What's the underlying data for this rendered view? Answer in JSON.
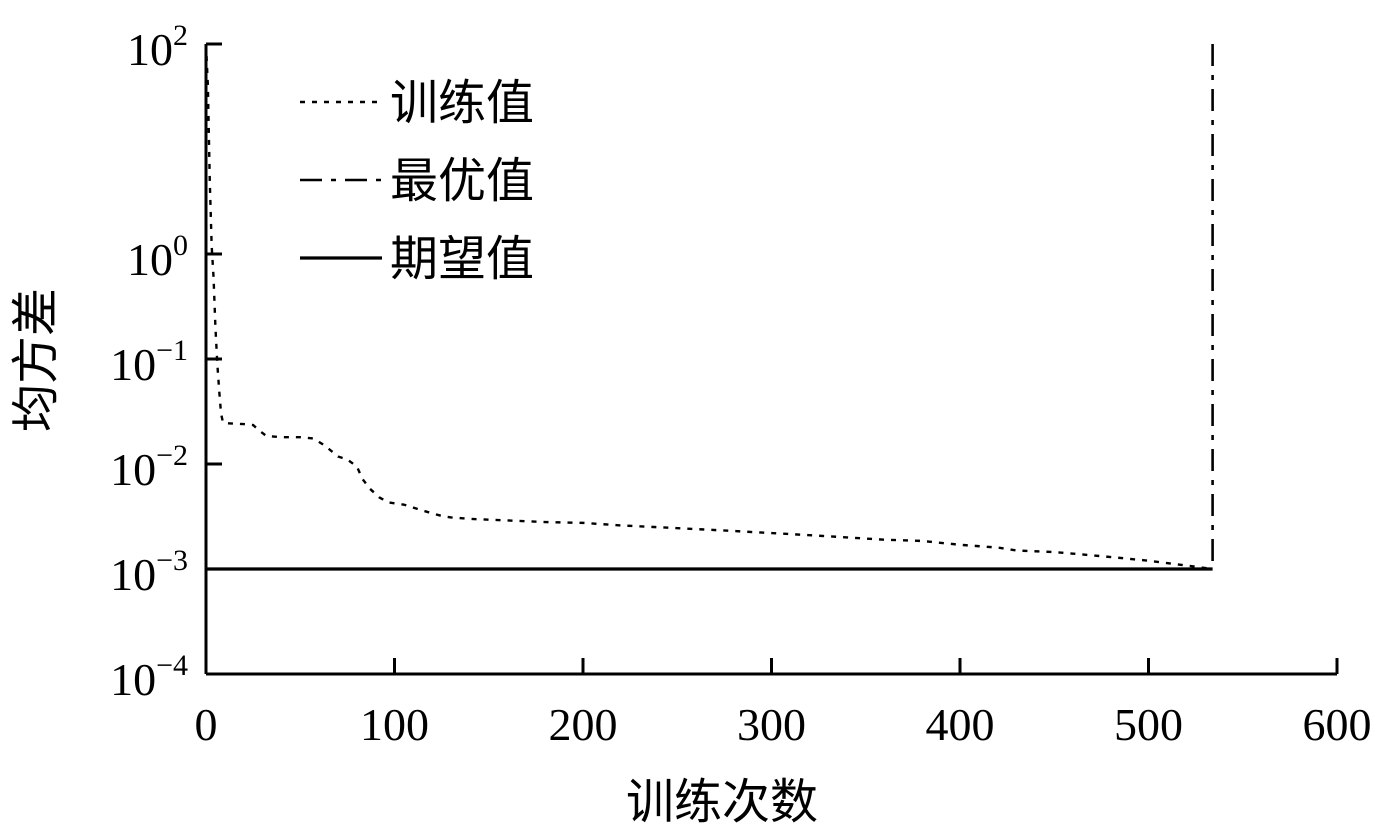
{
  "chart_data": {
    "type": "line",
    "title": "",
    "xlabel": "训练次数",
    "ylabel": "均方差",
    "xlim": [
      0,
      600
    ],
    "x_ticks": [
      0,
      100,
      200,
      300,
      400,
      500,
      600
    ],
    "x_tick_labels": [
      "0",
      "100",
      "200",
      "300",
      "400",
      "500",
      "600"
    ],
    "y_scale": "log",
    "ylim": [
      0.0001,
      100
    ],
    "y_ticks": [
      {
        "value": 0.0001,
        "base": "10",
        "exp": "−4"
      },
      {
        "value": 0.001,
        "base": "10",
        "exp": "−3"
      },
      {
        "value": 0.01,
        "base": "10",
        "exp": "−2"
      },
      {
        "value": 0.1,
        "base": "10",
        "exp": "−1"
      },
      {
        "value": 1,
        "base": "10",
        "exp": "0"
      },
      {
        "value": 100,
        "base": "10",
        "exp": "2"
      }
    ],
    "grid": false,
    "legend_position": "top-left",
    "series": [
      {
        "name": "训练值",
        "style": "dotted",
        "color": "#000000",
        "points": [
          [
            0,
            100
          ],
          [
            1,
            40
          ],
          [
            2,
            5
          ],
          [
            3,
            1.2
          ],
          [
            4,
            0.6
          ],
          [
            5,
            0.2
          ],
          [
            6,
            0.09
          ],
          [
            7,
            0.05
          ],
          [
            8,
            0.03
          ],
          [
            9,
            0.025
          ],
          [
            10,
            0.0245
          ],
          [
            20,
            0.024
          ],
          [
            25,
            0.0235
          ],
          [
            28,
            0.021
          ],
          [
            32,
            0.0185
          ],
          [
            40,
            0.018
          ],
          [
            50,
            0.018
          ],
          [
            57,
            0.0175
          ],
          [
            63,
            0.015
          ],
          [
            70,
            0.0118
          ],
          [
            75,
            0.011
          ],
          [
            80,
            0.0095
          ],
          [
            83,
            0.0072
          ],
          [
            87,
            0.0058
          ],
          [
            92,
            0.0048
          ],
          [
            97,
            0.0043
          ],
          [
            105,
            0.0041
          ],
          [
            115,
            0.0036
          ],
          [
            125,
            0.0032
          ],
          [
            130,
            0.0031
          ],
          [
            140,
            0.003
          ],
          [
            160,
            0.0029
          ],
          [
            180,
            0.0028
          ],
          [
            200,
            0.00275
          ],
          [
            220,
            0.0026
          ],
          [
            240,
            0.0025
          ],
          [
            260,
            0.0024
          ],
          [
            280,
            0.0023
          ],
          [
            300,
            0.0022
          ],
          [
            320,
            0.0021
          ],
          [
            340,
            0.002
          ],
          [
            360,
            0.0019
          ],
          [
            380,
            0.00185
          ],
          [
            400,
            0.0017
          ],
          [
            420,
            0.0016
          ],
          [
            430,
            0.0015
          ],
          [
            450,
            0.00145
          ],
          [
            460,
            0.0014
          ],
          [
            480,
            0.0013
          ],
          [
            500,
            0.0012
          ],
          [
            520,
            0.00108
          ],
          [
            534,
            0.001
          ]
        ]
      },
      {
        "name": "最优值",
        "style": "dashdot",
        "color": "#000000",
        "points": [
          [
            534,
            100
          ],
          [
            534,
            0.001
          ]
        ]
      },
      {
        "name": "期望值",
        "style": "solid",
        "color": "#000000",
        "points": [
          [
            0,
            0.001
          ],
          [
            534,
            0.001
          ]
        ]
      }
    ]
  }
}
